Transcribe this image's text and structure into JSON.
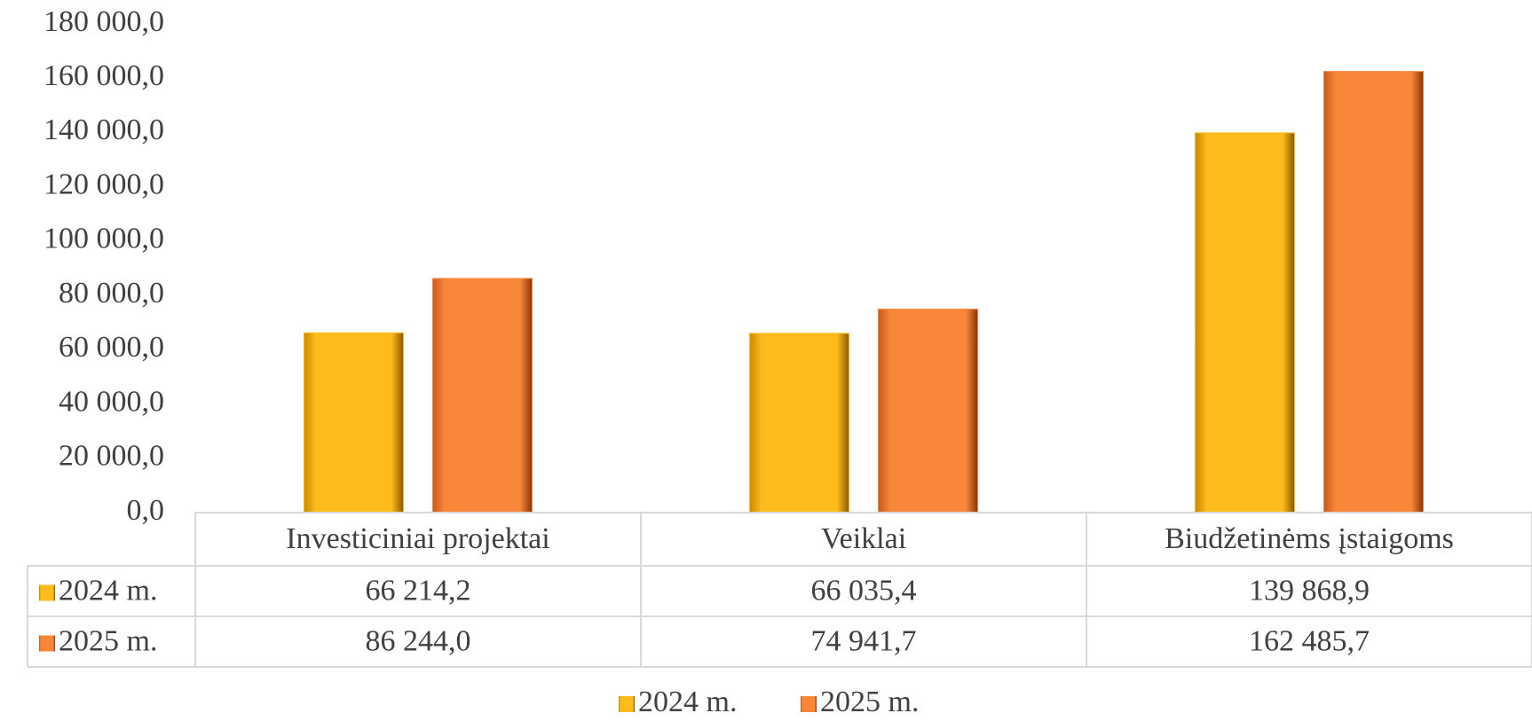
{
  "chart_data": {
    "type": "bar",
    "categories": [
      "Investiciniai projektai",
      "Veiklai",
      "Biudžetinėms įstaigoms"
    ],
    "series": [
      {
        "name": "2024 m.",
        "color": "#fdbb1c",
        "values": [
          66214.2,
          66035.4,
          139868.9
        ],
        "value_labels": [
          "66 214,2",
          "66 035,4",
          "139 868,9"
        ]
      },
      {
        "name": "2025 m.",
        "color": "#f8873a",
        "values": [
          86244.0,
          74941.7,
          162485.7
        ],
        "value_labels": [
          "86 244,0",
          "74 941,7",
          "162 485,7"
        ]
      }
    ],
    "ylim": [
      0,
      180000
    ],
    "yticks": [
      {
        "value": 0,
        "label": "0,0"
      },
      {
        "value": 20000,
        "label": "20 000,0"
      },
      {
        "value": 40000,
        "label": "40 000,0"
      },
      {
        "value": 60000,
        "label": "60 000,0"
      },
      {
        "value": 80000,
        "label": "80 000,0"
      },
      {
        "value": 100000,
        "label": "100 000,0"
      },
      {
        "value": 120000,
        "label": "120 000,0"
      },
      {
        "value": 140000,
        "label": "140 000,0"
      },
      {
        "value": 160000,
        "label": "160 000,0"
      },
      {
        "value": 180000,
        "label": "180 000,0"
      }
    ],
    "grid": false,
    "data_table": true,
    "legend": "bottom"
  }
}
